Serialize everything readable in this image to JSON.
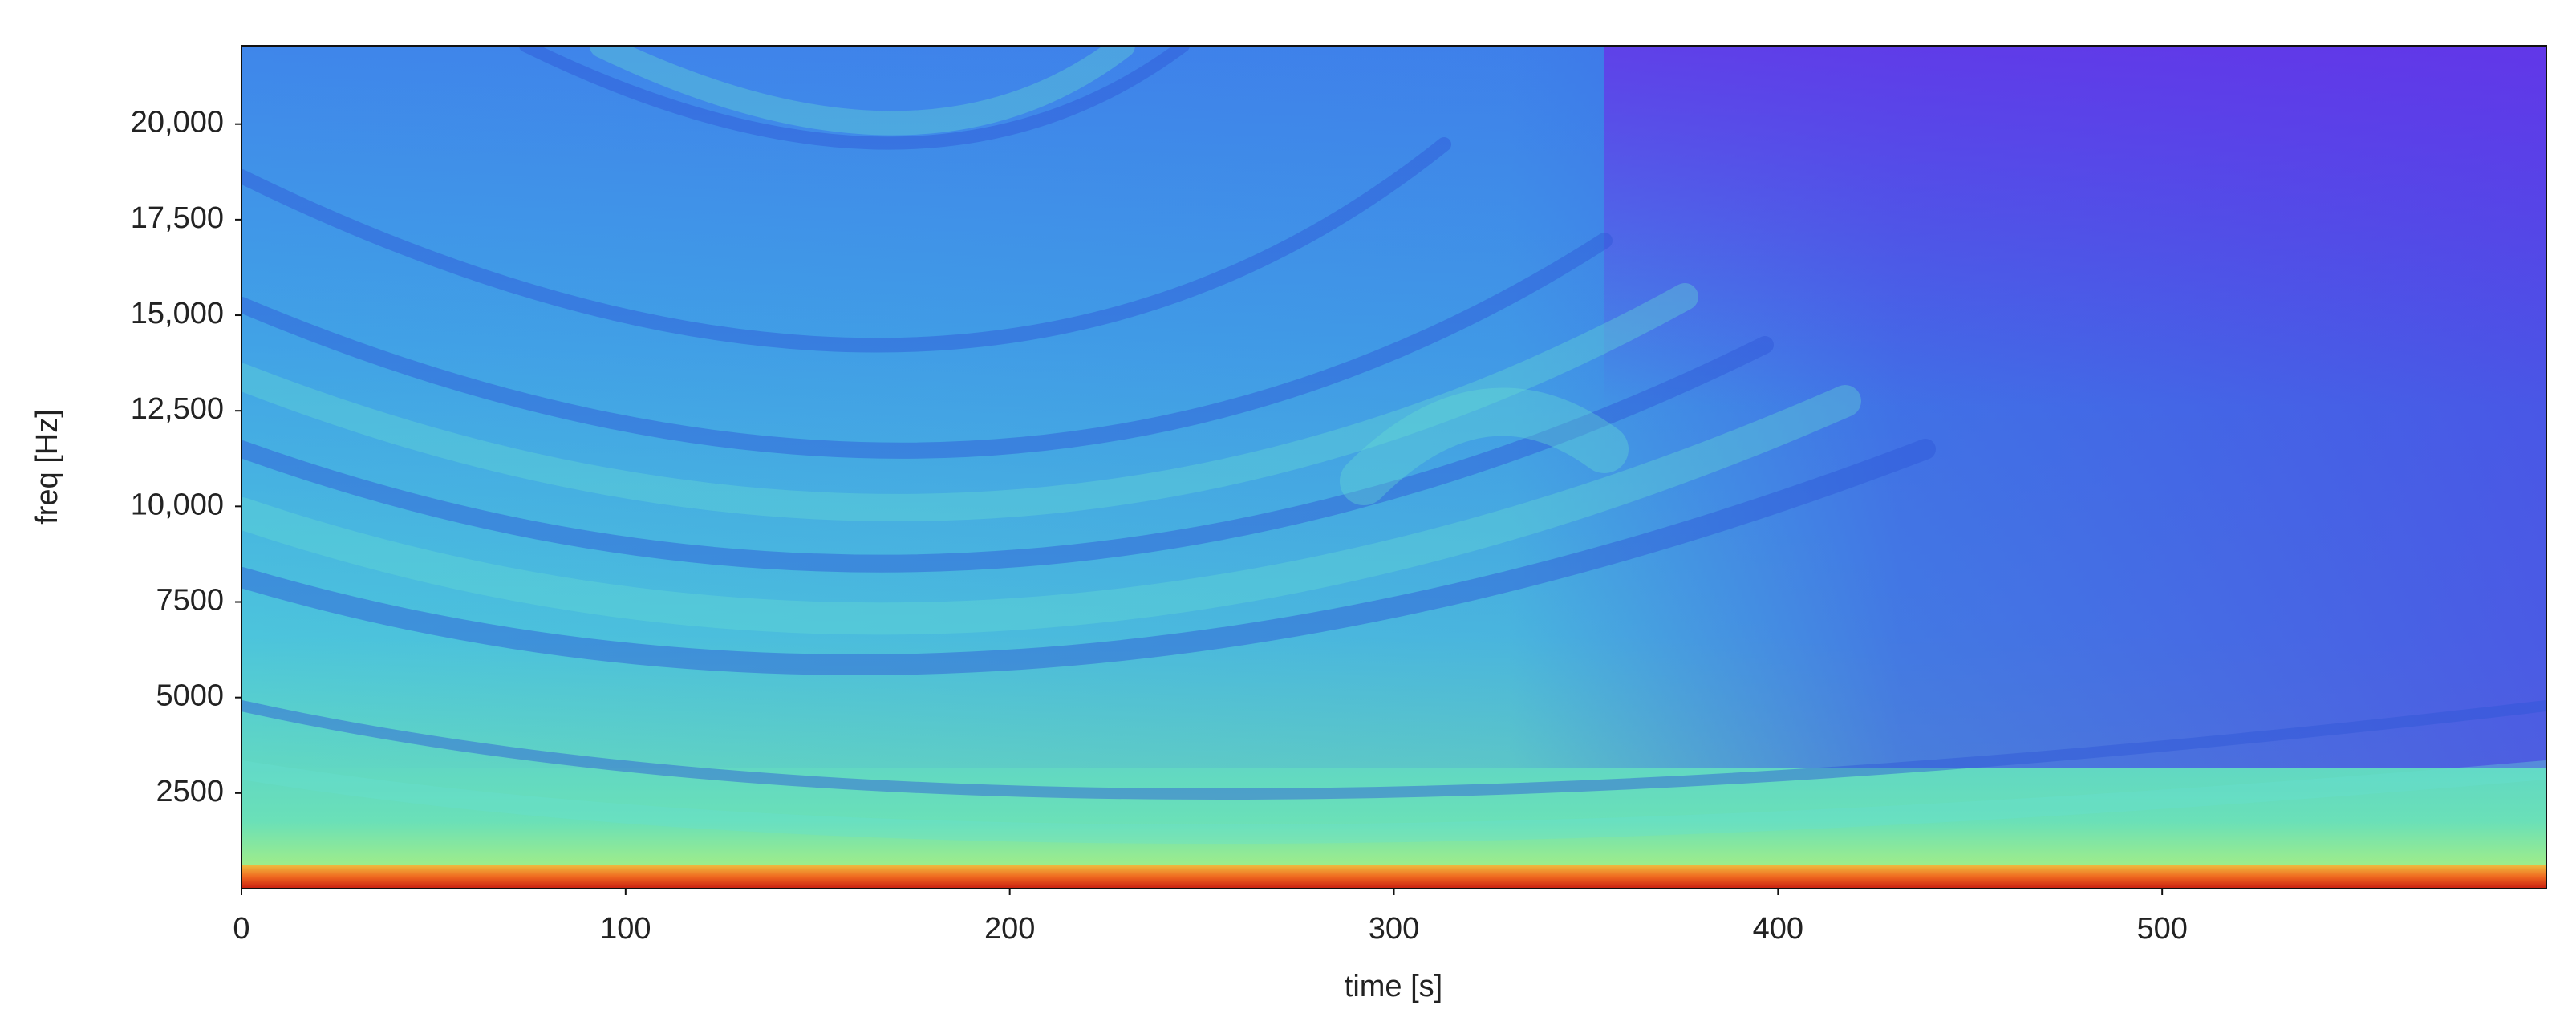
{
  "chart_data": {
    "type": "spectrogram",
    "xlabel": "time [s]",
    "ylabel": "freq [Hz]",
    "xlim": [
      0,
      600
    ],
    "xticks": [
      0,
      100,
      200,
      300,
      400,
      500
    ],
    "ylim": [
      0,
      22050
    ],
    "yticks": [
      2500,
      5000,
      7500,
      {
        "value": 10000,
        "label": "10,000"
      },
      {
        "value": 12500,
        "label": "12,500"
      },
      {
        "value": 15000,
        "label": "15,000"
      },
      {
        "value": 17500,
        "label": "17,500"
      },
      {
        "value": 20000,
        "label": "20,000"
      }
    ]
  }
}
